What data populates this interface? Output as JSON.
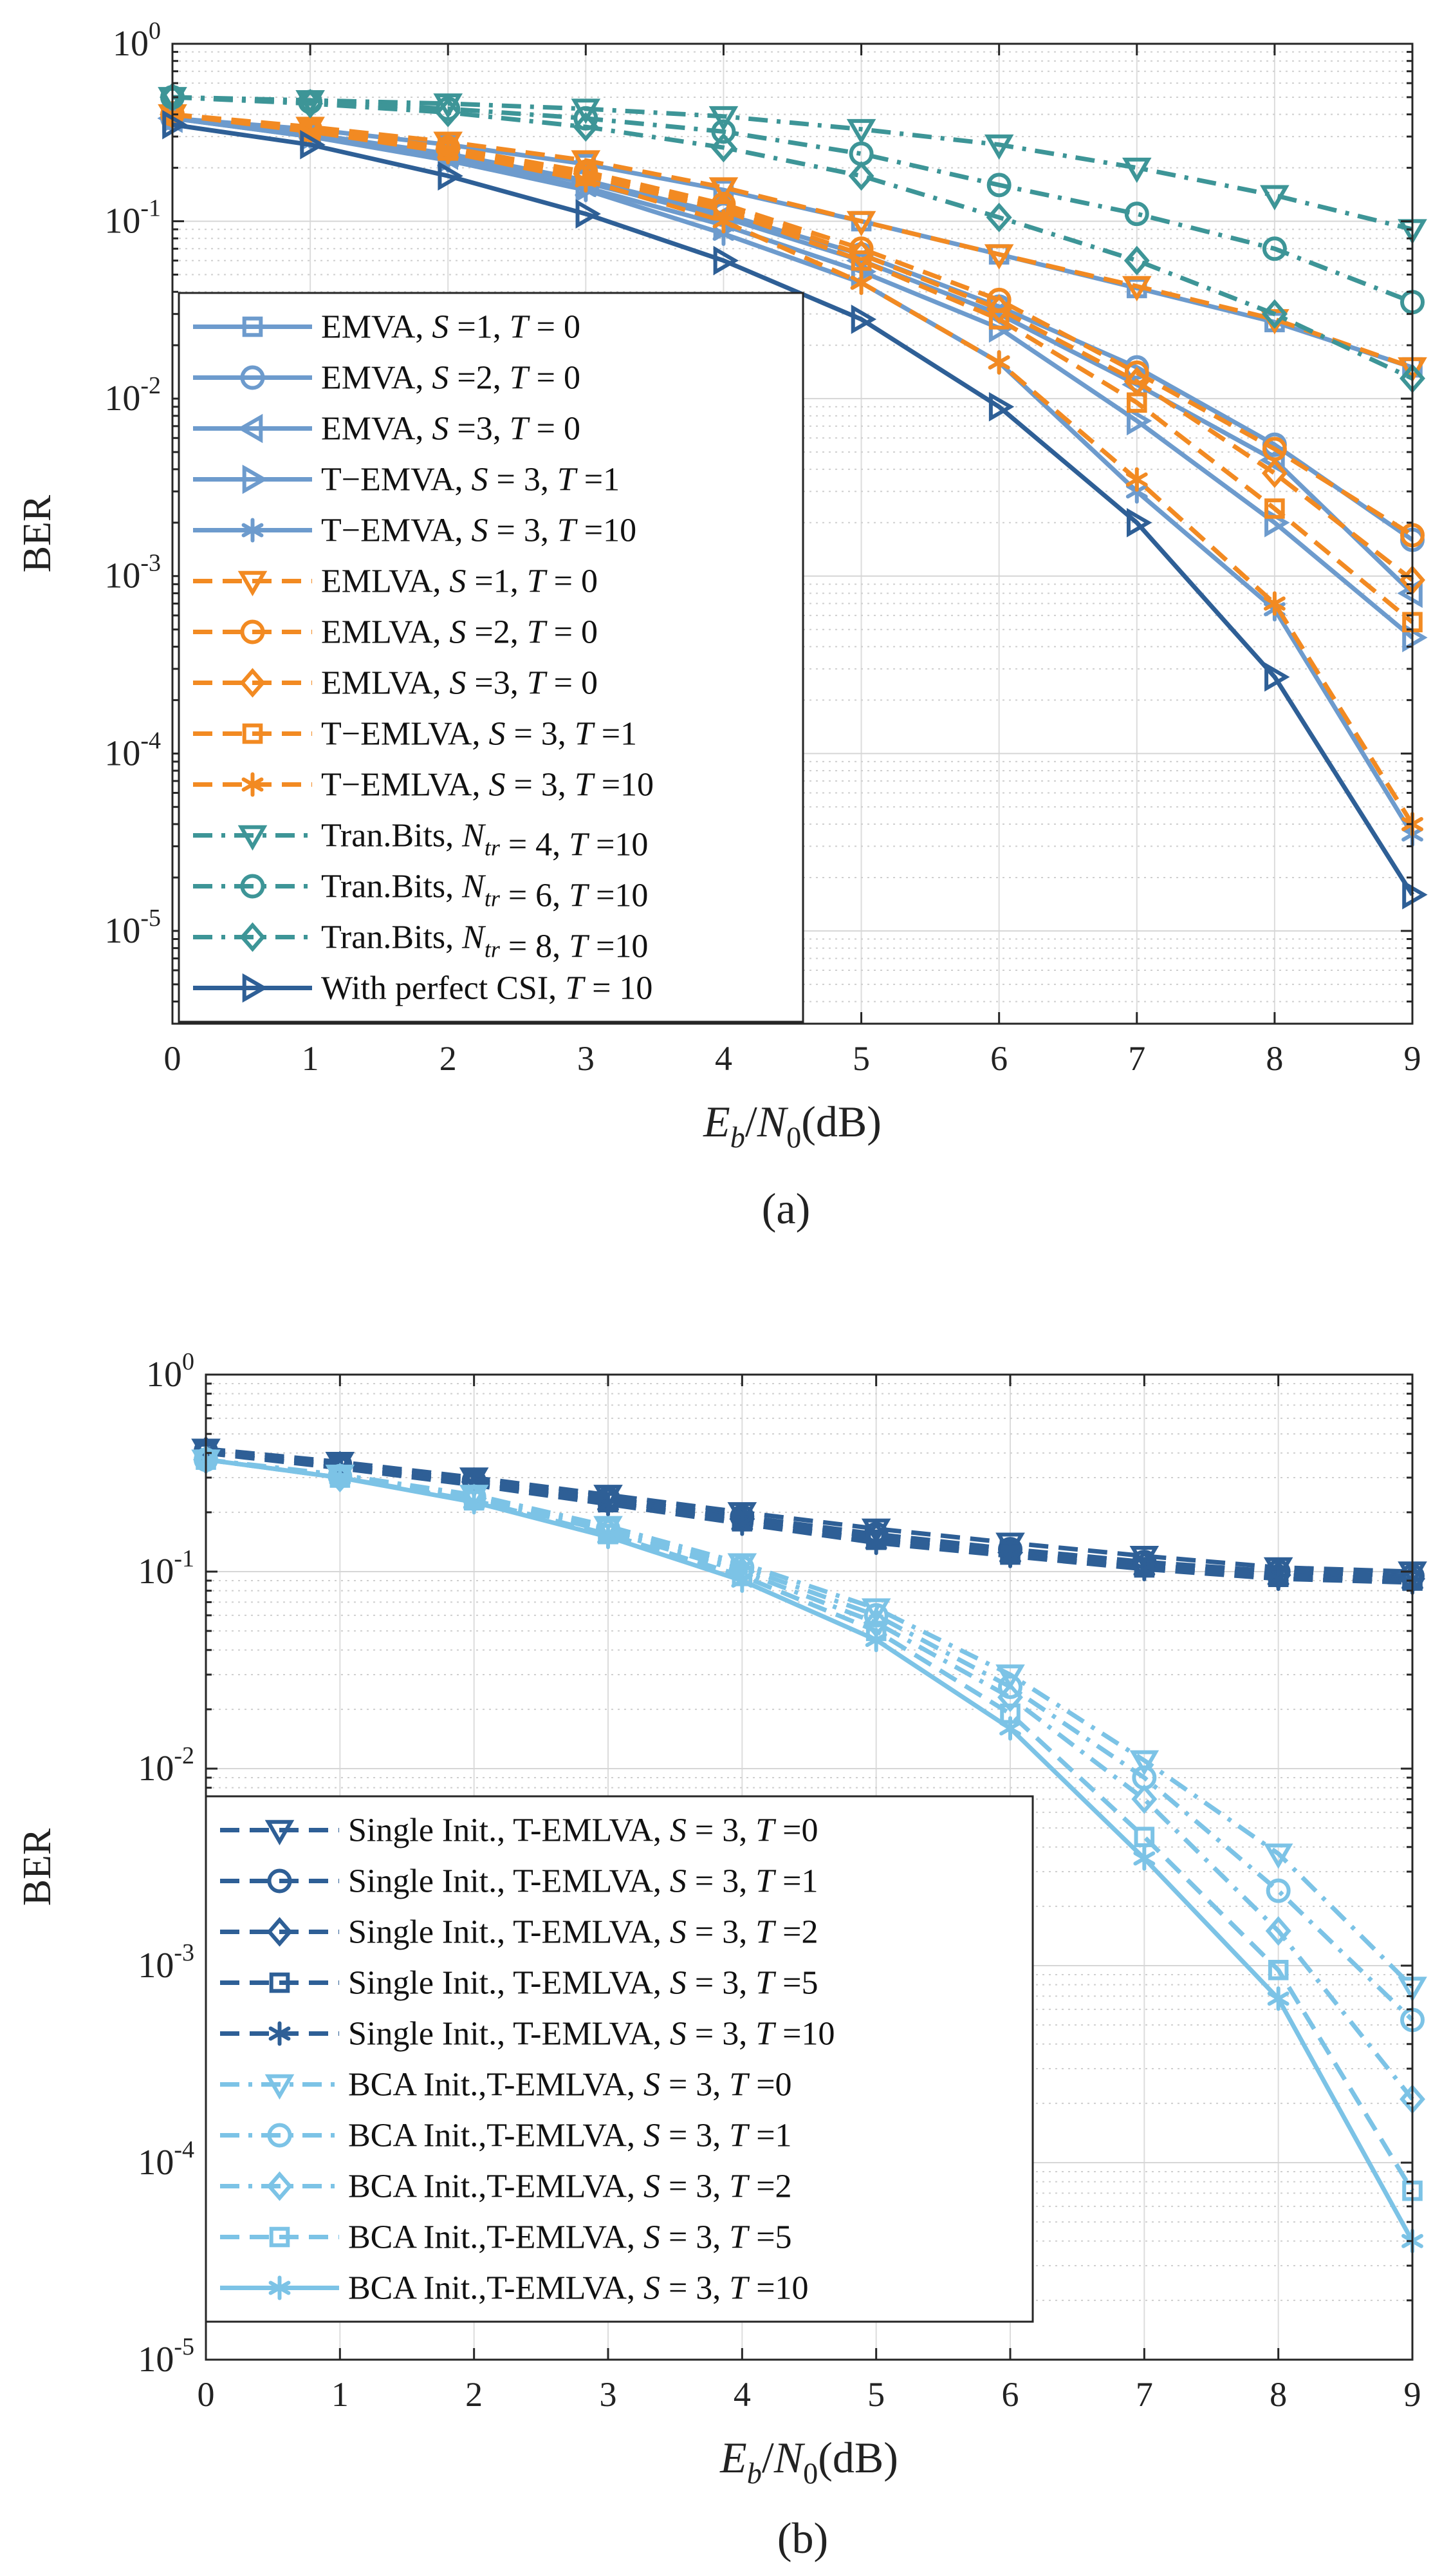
{
  "chart_data": [
    {
      "id": "a",
      "type": "line",
      "caption": "(a)",
      "xlabel": "E_b/N_0(dB)",
      "ylabel": "BER",
      "yscale": "log",
      "xlim": [
        0,
        9
      ],
      "ylim": [
        3e-06,
        1
      ],
      "grid": true,
      "legend_position": "left",
      "x_ticks": [
        "0",
        "1",
        "2",
        "3",
        "4",
        "5",
        "6",
        "7",
        "8",
        "9"
      ],
      "y_ticks": [
        {
          "base": "10",
          "exp": "0"
        },
        {
          "base": "10",
          "exp": "-1"
        },
        {
          "base": "10",
          "exp": "-2"
        },
        {
          "base": "10",
          "exp": "-3"
        },
        {
          "base": "10",
          "exp": "-4"
        },
        {
          "base": "10",
          "exp": "-5"
        }
      ],
      "x": [
        0,
        1,
        2,
        3,
        4,
        5,
        6,
        7,
        8,
        9
      ],
      "series": [
        {
          "name": "EMVA, S =1, T = 0",
          "color": "#6D9BCD",
          "dash": "solid",
          "marker": "square",
          "values": [
            0.38,
            0.33,
            0.27,
            0.21,
            0.15,
            0.1,
            0.065,
            0.042,
            0.027,
            0.015
          ],
          "legend": [
            {
              "t": "EMVA, "
            },
            {
              "t": "S",
              "i": true
            },
            {
              "t": " =1, "
            },
            {
              "t": "T",
              "i": true
            },
            {
              "t": " = 0"
            }
          ]
        },
        {
          "name": "EMVA, S =2, T = 0",
          "color": "#6D9BCD",
          "dash": "solid",
          "marker": "circle",
          "values": [
            0.38,
            0.31,
            0.24,
            0.17,
            0.11,
            0.065,
            0.033,
            0.015,
            0.0055,
            0.0016
          ],
          "legend": [
            {
              "t": "EMVA, "
            },
            {
              "t": "S",
              "i": true
            },
            {
              "t": " =2, "
            },
            {
              "t": "T",
              "i": true
            },
            {
              "t": " = 0"
            }
          ]
        },
        {
          "name": "EMVA, S =3, T = 0",
          "color": "#6D9BCD",
          "dash": "solid",
          "marker": "triangle-left",
          "values": [
            0.38,
            0.31,
            0.235,
            0.165,
            0.105,
            0.06,
            0.03,
            0.012,
            0.0045,
            0.0008
          ],
          "legend": [
            {
              "t": "EMVA, "
            },
            {
              "t": "S",
              "i": true
            },
            {
              "t": " =3, "
            },
            {
              "t": "T",
              "i": true
            },
            {
              "t": " = 0"
            }
          ]
        },
        {
          "name": "T−EMVA, S = 3, T =1",
          "color": "#6D9BCD",
          "dash": "solid",
          "marker": "triangle-right",
          "values": [
            0.38,
            0.3,
            0.225,
            0.155,
            0.095,
            0.052,
            0.025,
            0.0075,
            0.002,
            0.00045
          ],
          "legend": [
            {
              "t": "T−EMVA, "
            },
            {
              "t": "S",
              "i": true
            },
            {
              "t": " = 3, "
            },
            {
              "t": "T",
              "i": true
            },
            {
              "t": " =1"
            }
          ]
        },
        {
          "name": "T−EMVA, S = 3, T =10",
          "color": "#6D9BCD",
          "dash": "solid",
          "marker": "asterisk",
          "values": [
            0.38,
            0.3,
            0.22,
            0.15,
            0.085,
            0.045,
            0.016,
            0.003,
            0.00065,
            3.5e-05
          ],
          "legend": [
            {
              "t": "T−EMVA, "
            },
            {
              "t": "S",
              "i": true
            },
            {
              "t": " = 3, "
            },
            {
              "t": "T",
              "i": true
            },
            {
              "t": " =10"
            }
          ]
        },
        {
          "name": "EMLVA, S =1, T = 0",
          "color": "#F28A22",
          "dash": "dashed",
          "marker": "triangle-down",
          "values": [
            0.4,
            0.34,
            0.28,
            0.22,
            0.155,
            0.1,
            0.065,
            0.043,
            0.028,
            0.015
          ],
          "legend": [
            {
              "t": "EMLVA, "
            },
            {
              "t": "S",
              "i": true
            },
            {
              "t": " =1, "
            },
            {
              "t": "T",
              "i": true
            },
            {
              "t": " = 0"
            }
          ]
        },
        {
          "name": "EMLVA, S =2, T = 0",
          "color": "#F28A22",
          "dash": "dashed",
          "marker": "circle",
          "values": [
            0.4,
            0.33,
            0.26,
            0.19,
            0.125,
            0.07,
            0.036,
            0.014,
            0.0052,
            0.0017
          ],
          "legend": [
            {
              "t": "EMLVA, "
            },
            {
              "t": "S",
              "i": true
            },
            {
              "t": " =2, "
            },
            {
              "t": "T",
              "i": true
            },
            {
              "t": " = 0"
            }
          ]
        },
        {
          "name": "EMLVA, S =3, T = 0",
          "color": "#F28A22",
          "dash": "dashed",
          "marker": "diamond",
          "values": [
            0.4,
            0.33,
            0.255,
            0.185,
            0.12,
            0.065,
            0.032,
            0.0125,
            0.0038,
            0.00095
          ],
          "legend": [
            {
              "t": "EMLVA, "
            },
            {
              "t": "S",
              "i": true
            },
            {
              "t": " =3, "
            },
            {
              "t": "T",
              "i": true
            },
            {
              "t": " = 0"
            }
          ]
        },
        {
          "name": "T−EMLVA, S = 3, T =1",
          "color": "#F28A22",
          "dash": "dashed",
          "marker": "square",
          "values": [
            0.4,
            0.32,
            0.25,
            0.18,
            0.115,
            0.06,
            0.028,
            0.0095,
            0.0024,
            0.00055
          ],
          "legend": [
            {
              "t": "T−EMLVA, "
            },
            {
              "t": "S",
              "i": true
            },
            {
              "t": " = 3, "
            },
            {
              "t": "T",
              "i": true
            },
            {
              "t": " =1"
            }
          ]
        },
        {
          "name": "T−EMLVA, S = 3, T =10",
          "color": "#F28A22",
          "dash": "dashed",
          "marker": "asterisk",
          "values": [
            0.4,
            0.32,
            0.245,
            0.17,
            0.1,
            0.045,
            0.016,
            0.0035,
            0.0007,
            4e-05
          ],
          "legend": [
            {
              "t": "T−EMLVA, "
            },
            {
              "t": "S",
              "i": true
            },
            {
              "t": " = 3, "
            },
            {
              "t": "T",
              "i": true
            },
            {
              "t": " =10"
            }
          ]
        },
        {
          "name": "Tran.Bits, N_tr = 4, T =10",
          "color": "#3D9597",
          "dash": "dashdot",
          "marker": "triangle-down",
          "values": [
            0.5,
            0.48,
            0.46,
            0.43,
            0.39,
            0.33,
            0.27,
            0.2,
            0.14,
            0.09
          ],
          "legend": [
            {
              "t": "Tran.Bits, "
            },
            {
              "t": "N",
              "i": true,
              "sub": "tr"
            },
            {
              "t": " = 4, "
            },
            {
              "t": "T",
              "i": true
            },
            {
              "t": " =10"
            }
          ]
        },
        {
          "name": "Tran.Bits, N_tr = 6, T =10",
          "color": "#3D9597",
          "dash": "dashdot",
          "marker": "circle",
          "values": [
            0.5,
            0.47,
            0.43,
            0.38,
            0.32,
            0.24,
            0.16,
            0.11,
            0.07,
            0.035
          ],
          "legend": [
            {
              "t": "Tran.Bits, "
            },
            {
              "t": "N",
              "i": true,
              "sub": "tr"
            },
            {
              "t": " = 6, "
            },
            {
              "t": "T",
              "i": true
            },
            {
              "t": " =10"
            }
          ]
        },
        {
          "name": "Tran.Bits, N_tr = 8, T =10",
          "color": "#3D9597",
          "dash": "dashdot",
          "marker": "diamond",
          "values": [
            0.5,
            0.46,
            0.41,
            0.34,
            0.26,
            0.18,
            0.105,
            0.06,
            0.03,
            0.013
          ],
          "legend": [
            {
              "t": "Tran.Bits, "
            },
            {
              "t": "N",
              "i": true,
              "sub": "tr"
            },
            {
              "t": " = 8, "
            },
            {
              "t": "T",
              "i": true
            },
            {
              "t": " =10"
            }
          ]
        },
        {
          "name": "With perfect CSI, T = 10",
          "color": "#2E5F96",
          "dash": "solid",
          "marker": "triangle-right",
          "values": [
            0.35,
            0.27,
            0.18,
            0.11,
            0.06,
            0.028,
            0.009,
            0.002,
            0.00027,
            1.6e-05
          ],
          "legend": [
            {
              "t": "With perfect CSI, "
            },
            {
              "t": "T",
              "i": true
            },
            {
              "t": " = 10"
            }
          ]
        }
      ]
    },
    {
      "id": "b",
      "type": "line",
      "caption": "(b)",
      "xlabel": "E_b/N_0(dB)",
      "ylabel": "BER",
      "yscale": "log",
      "xlim": [
        0,
        9
      ],
      "ylim": [
        1e-05,
        1
      ],
      "grid": true,
      "legend_position": "bottom-left",
      "x_ticks": [
        "0",
        "1",
        "2",
        "3",
        "4",
        "5",
        "6",
        "7",
        "8",
        "9"
      ],
      "y_ticks": [
        {
          "base": "10",
          "exp": "0"
        },
        {
          "base": "10",
          "exp": "-1"
        },
        {
          "base": "10",
          "exp": "-2"
        },
        {
          "base": "10",
          "exp": "-3"
        },
        {
          "base": "10",
          "exp": "-4"
        },
        {
          "base": "10",
          "exp": "-5"
        }
      ],
      "x": [
        0,
        1,
        2,
        3,
        4,
        5,
        6,
        7,
        8,
        9
      ],
      "series": [
        {
          "name": "Single Init., T-EMLVA, S = 3, T =0",
          "color": "#2E5F96",
          "dash": "dashed",
          "marker": "triangle-down",
          "values": [
            0.42,
            0.36,
            0.3,
            0.245,
            0.2,
            0.165,
            0.14,
            0.12,
            0.105,
            0.1
          ],
          "legend": [
            {
              "t": "Single Init., T-EMLVA, "
            },
            {
              "t": "S",
              "i": true
            },
            {
              "t": " = 3, "
            },
            {
              "t": "T",
              "i": true
            },
            {
              "t": " =0"
            }
          ]
        },
        {
          "name": "Single Init., T-EMLVA, S = 3, T =1",
          "color": "#2E5F96",
          "dash": "dashed",
          "marker": "circle",
          "values": [
            0.41,
            0.35,
            0.29,
            0.235,
            0.19,
            0.155,
            0.13,
            0.112,
            0.1,
            0.095
          ],
          "legend": [
            {
              "t": "Single Init., T-EMLVA, "
            },
            {
              "t": "S",
              "i": true
            },
            {
              "t": " = 3, "
            },
            {
              "t": "T",
              "i": true
            },
            {
              "t": " =1"
            }
          ]
        },
        {
          "name": "Single Init., T-EMLVA, S = 3, T =2",
          "color": "#2E5F96",
          "dash": "dashed",
          "marker": "diamond",
          "values": [
            0.41,
            0.345,
            0.285,
            0.23,
            0.185,
            0.15,
            0.125,
            0.108,
            0.096,
            0.092
          ],
          "legend": [
            {
              "t": "Single Init., T-EMLVA, "
            },
            {
              "t": "S",
              "i": true
            },
            {
              "t": " = 3, "
            },
            {
              "t": "T",
              "i": true
            },
            {
              "t": " =2"
            }
          ]
        },
        {
          "name": "Single Init., T-EMLVA, S = 3, T =5",
          "color": "#2E5F96",
          "dash": "dashed",
          "marker": "square",
          "values": [
            0.4,
            0.34,
            0.28,
            0.225,
            0.18,
            0.145,
            0.122,
            0.105,
            0.094,
            0.09
          ],
          "legend": [
            {
              "t": "Single Init., T-EMLVA, "
            },
            {
              "t": "S",
              "i": true
            },
            {
              "t": " = 3, "
            },
            {
              "t": "T",
              "i": true
            },
            {
              "t": " =5"
            }
          ]
        },
        {
          "name": "Single Init., T-EMLVA, S = 3, T =10",
          "color": "#2E5F96",
          "dash": "dashed",
          "marker": "asterisk",
          "values": [
            0.4,
            0.335,
            0.275,
            0.22,
            0.175,
            0.14,
            0.12,
            0.103,
            0.092,
            0.088
          ],
          "legend": [
            {
              "t": "Single Init., T-EMLVA, "
            },
            {
              "t": "S",
              "i": true
            },
            {
              "t": " = 3, "
            },
            {
              "t": "T",
              "i": true
            },
            {
              "t": " =10"
            }
          ]
        },
        {
          "name": "BCA Init.,T-EMLVA, S = 3, T =0",
          "color": "#7CC3E6",
          "dash": "dashdot",
          "marker": "triangle-down",
          "values": [
            0.37,
            0.31,
            0.245,
            0.17,
            0.11,
            0.065,
            0.03,
            0.011,
            0.0037,
            0.00078
          ],
          "legend": [
            {
              "t": "BCA Init.,T-EMLVA, "
            },
            {
              "t": "S",
              "i": true
            },
            {
              "t": " = 3, "
            },
            {
              "t": "T",
              "i": true
            },
            {
              "t": " =0"
            }
          ]
        },
        {
          "name": "BCA Init.,T-EMLVA, S = 3, T =1",
          "color": "#7CC3E6",
          "dash": "dashdot",
          "marker": "circle",
          "values": [
            0.37,
            0.305,
            0.24,
            0.165,
            0.105,
            0.06,
            0.026,
            0.009,
            0.0024,
            0.00053
          ],
          "legend": [
            {
              "t": "BCA Init.,T-EMLVA, "
            },
            {
              "t": "S",
              "i": true
            },
            {
              "t": " = 3, "
            },
            {
              "t": "T",
              "i": true
            },
            {
              "t": " =1"
            }
          ]
        },
        {
          "name": "BCA Init.,T-EMLVA, S = 3, T =2",
          "color": "#7CC3E6",
          "dash": "dashdot",
          "marker": "diamond",
          "values": [
            0.37,
            0.3,
            0.235,
            0.16,
            0.1,
            0.055,
            0.023,
            0.007,
            0.0015,
            0.00021
          ],
          "legend": [
            {
              "t": "BCA Init.,T-EMLVA, "
            },
            {
              "t": "S",
              "i": true
            },
            {
              "t": " = 3, "
            },
            {
              "t": "T",
              "i": true
            },
            {
              "t": " =2"
            }
          ]
        },
        {
          "name": "BCA Init.,T-EMLVA, S = 3, T =5",
          "color": "#7CC3E6",
          "dash": "dashed",
          "marker": "square",
          "values": [
            0.37,
            0.3,
            0.23,
            0.155,
            0.095,
            0.05,
            0.019,
            0.0045,
            0.00095,
            7.2e-05
          ],
          "legend": [
            {
              "t": "BCA Init.,T-EMLVA, "
            },
            {
              "t": "S",
              "i": true
            },
            {
              "t": " = 3, "
            },
            {
              "t": "T",
              "i": true
            },
            {
              "t": " =5"
            }
          ]
        },
        {
          "name": "BCA Init.,T-EMLVA, S = 3, T =10",
          "color": "#7CC3E6",
          "dash": "solid",
          "marker": "asterisk",
          "values": [
            0.37,
            0.3,
            0.225,
            0.15,
            0.09,
            0.045,
            0.016,
            0.0035,
            0.00068,
            4e-05
          ],
          "legend": [
            {
              "t": "BCA Init.,T-EMLVA, "
            },
            {
              "t": "S",
              "i": true
            },
            {
              "t": " = 3, "
            },
            {
              "t": "T",
              "i": true
            },
            {
              "t": " =10"
            }
          ]
        }
      ]
    }
  ]
}
